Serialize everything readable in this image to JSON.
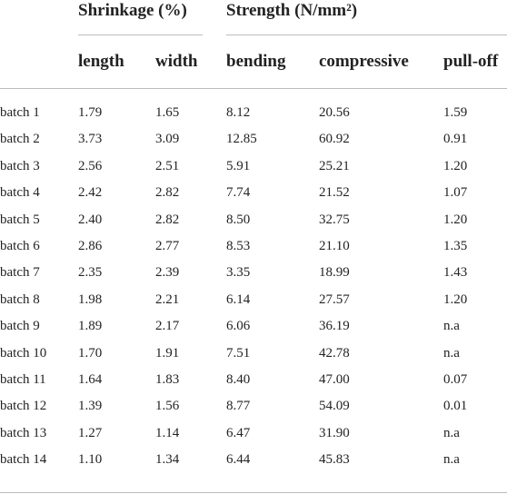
{
  "table": {
    "groups": [
      {
        "label": "Shrinkage (%)"
      },
      {
        "label": "Strength (N/mm²)"
      }
    ],
    "columns": [
      "length",
      "width",
      "bending",
      "compressive",
      "pull-off"
    ],
    "rows": [
      [
        "batch 1",
        "1.79",
        "1.65",
        "8.12",
        "20.56",
        "1.59"
      ],
      [
        "batch 2",
        "3.73",
        "3.09",
        "12.85",
        "60.92",
        "0.91"
      ],
      [
        "batch 3",
        "2.56",
        "2.51",
        "5.91",
        "25.21",
        "1.20"
      ],
      [
        "batch 4",
        "2.42",
        "2.82",
        "7.74",
        "21.52",
        "1.07"
      ],
      [
        "batch 5",
        "2.40",
        "2.82",
        "8.50",
        "32.75",
        "1.20"
      ],
      [
        "batch 6",
        "2.86",
        "2.77",
        "8.53",
        "21.10",
        "1.35"
      ],
      [
        "batch 7",
        "2.35",
        "2.39",
        "3.35",
        "18.99",
        "1.43"
      ],
      [
        "batch 8",
        "1.98",
        "2.21",
        "6.14",
        "27.57",
        "1.20"
      ],
      [
        "batch 9",
        "1.89",
        "2.17",
        "6.06",
        "36.19",
        "n.a"
      ],
      [
        "batch 10",
        "1.70",
        "1.91",
        "7.51",
        "42.78",
        "n.a"
      ],
      [
        "batch 11",
        "1.64",
        "1.83",
        "8.40",
        "47.00",
        "0.07"
      ],
      [
        "batch 12",
        "1.39",
        "1.56",
        "8.77",
        "54.09",
        "0.01"
      ],
      [
        "batch 13",
        "1.27",
        "1.14",
        "6.47",
        "31.90",
        "n.a"
      ],
      [
        "batch 14",
        "1.10",
        "1.34",
        "6.44",
        "45.83",
        "n.a"
      ]
    ]
  }
}
